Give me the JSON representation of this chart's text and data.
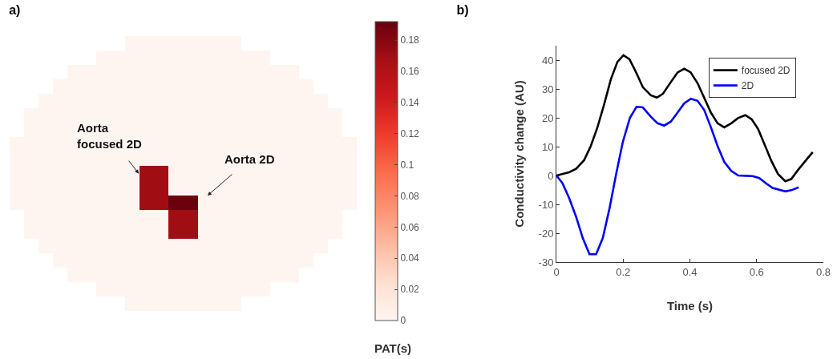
{
  "chart_data": [
    {
      "type": "heatmap",
      "title": "a)",
      "clabel": "PAT(s)",
      "annotations": [
        "Aorta focused 2D",
        "Aorta 2D"
      ],
      "categories": [
        null,
        null,
        null,
        null,
        null,
        null,
        null,
        null,
        null,
        null,
        null,
        null,
        null,
        null,
        null,
        null,
        null,
        null,
        null,
        null,
        null,
        null,
        null,
        null
      ],
      "y_categories": [
        null,
        null,
        null,
        null,
        null,
        null,
        null,
        null,
        null,
        null,
        null,
        null,
        null,
        null,
        null,
        null,
        null,
        null,
        null
      ],
      "clim": [
        0,
        0.192
      ],
      "cticks": [
        0,
        0.02,
        0.04,
        0.06,
        0.08,
        0.1,
        0.12,
        0.14,
        0.16,
        0.18
      ],
      "cells": [
        [
          null,
          null,
          null,
          null,
          null,
          null,
          null,
          null,
          0,
          0,
          0,
          0,
          0,
          0,
          0,
          0,
          null,
          null,
          null,
          null,
          null,
          null,
          null,
          null
        ],
        [
          null,
          null,
          null,
          null,
          null,
          null,
          0,
          0,
          0,
          0,
          0,
          0,
          0,
          0,
          0,
          0,
          0,
          0,
          null,
          null,
          null,
          null,
          null,
          null
        ],
        [
          null,
          null,
          null,
          null,
          0,
          0,
          0,
          0,
          0,
          0,
          0,
          0,
          0,
          0,
          0,
          0,
          0,
          0,
          0,
          0,
          null,
          null,
          null,
          null
        ],
        [
          null,
          null,
          null,
          0,
          0,
          0,
          0,
          0,
          0,
          0,
          0,
          0,
          0,
          0,
          0,
          0,
          0,
          0,
          0,
          0,
          0,
          null,
          null,
          null
        ],
        [
          null,
          null,
          0,
          0,
          0,
          0,
          0,
          0,
          0,
          0,
          0,
          0,
          0,
          0,
          0,
          0,
          0,
          0,
          0,
          0,
          0,
          0,
          null,
          null
        ],
        [
          null,
          0,
          0,
          0,
          0,
          0,
          0,
          0,
          0,
          0,
          0,
          0,
          0,
          0,
          0,
          0,
          0,
          0,
          0,
          0,
          0,
          0,
          0,
          null
        ],
        [
          null,
          0,
          0,
          0,
          0,
          0,
          0,
          0,
          0,
          0,
          0,
          0,
          0,
          0,
          0,
          0,
          0,
          0,
          0,
          0,
          0,
          0,
          0,
          null
        ],
        [
          0,
          0,
          0,
          0,
          0,
          0,
          0,
          0,
          0,
          0,
          0,
          0,
          0,
          0,
          0,
          0,
          0,
          0,
          0,
          0,
          0,
          0,
          0,
          0
        ],
        [
          0,
          0,
          0,
          0,
          0,
          0,
          0,
          0,
          0,
          0,
          0,
          0,
          0,
          0,
          0,
          0,
          0,
          0,
          0,
          0,
          0,
          0,
          0,
          0
        ],
        [
          0,
          0,
          0,
          0,
          0,
          0,
          0,
          0,
          0,
          0.17,
          0.17,
          0,
          0,
          0,
          0,
          0,
          0,
          0,
          0,
          0,
          0,
          0,
          0,
          0
        ],
        [
          0,
          0,
          0,
          0,
          0,
          0,
          0,
          0,
          0,
          0.17,
          0.17,
          0,
          0,
          0,
          0,
          0,
          0,
          0,
          0,
          0,
          0,
          0,
          0,
          0
        ],
        [
          0,
          0,
          0,
          0,
          0,
          0,
          0,
          0,
          0,
          0.17,
          0.17,
          0.19,
          0.19,
          0,
          0,
          0,
          0,
          0,
          0,
          0,
          0,
          0,
          0,
          0
        ],
        [
          null,
          0,
          0,
          0,
          0,
          0,
          0,
          0,
          0,
          0,
          0,
          0.17,
          0.17,
          0,
          0,
          0,
          0,
          0,
          0,
          0,
          0,
          0,
          0,
          null
        ],
        [
          null,
          0,
          0,
          0,
          0,
          0,
          0,
          0,
          0,
          0,
          0,
          0.17,
          0.17,
          0,
          0,
          0,
          0,
          0,
          0,
          0,
          0,
          0,
          0,
          null
        ],
        [
          null,
          null,
          0,
          0,
          0,
          0,
          0,
          0,
          0,
          0,
          0,
          0,
          0,
          0,
          0,
          0,
          0,
          0,
          0,
          0,
          0,
          0,
          null,
          null
        ],
        [
          null,
          null,
          null,
          0,
          0,
          0,
          0,
          0,
          0,
          0,
          0,
          0,
          0,
          0,
          0,
          0,
          0,
          0,
          0,
          0,
          0,
          null,
          null,
          null
        ],
        [
          null,
          null,
          null,
          null,
          0,
          0,
          0,
          0,
          0,
          0,
          0,
          0,
          0,
          0,
          0,
          0,
          0,
          0,
          0,
          0,
          null,
          null,
          null,
          null
        ],
        [
          null,
          null,
          null,
          null,
          null,
          null,
          0,
          0,
          0,
          0,
          0,
          0,
          0,
          0,
          0,
          0,
          0,
          0,
          null,
          null,
          null,
          null,
          null,
          null
        ],
        [
          null,
          null,
          null,
          null,
          null,
          null,
          null,
          null,
          0,
          0,
          0,
          0,
          0,
          0,
          0,
          0,
          null,
          null,
          null,
          null,
          null,
          null,
          null,
          null
        ]
      ]
    },
    {
      "type": "line",
      "title": "b)",
      "xlabel": "Time (s)",
      "ylabel": "Conductivity change (AU)",
      "xlim": [
        0,
        0.8
      ],
      "xticks": [
        0,
        0.2,
        0.4,
        0.6,
        0.8
      ],
      "ylim": [
        -30,
        45
      ],
      "yticks": [
        -30,
        -20,
        -10,
        0,
        10,
        20,
        30,
        40
      ],
      "grid": false,
      "legend": "top right",
      "marker": "none",
      "line_style": "solid",
      "series": [
        {
          "name": "focused 2D",
          "color": "#000000",
          "x": [
            0,
            0.038,
            0.059,
            0.083,
            0.103,
            0.123,
            0.143,
            0.163,
            0.183,
            0.201,
            0.219,
            0.239,
            0.259,
            0.283,
            0.301,
            0.319,
            0.343,
            0.363,
            0.383,
            0.402,
            0.423,
            0.443,
            0.463,
            0.483,
            0.503,
            0.524,
            0.544,
            0.566,
            0.585,
            0.604,
            0.624,
            0.644,
            0.664,
            0.686,
            0.704,
            0.724,
            0.748,
            0.768
          ],
          "values": [
            0,
            1.1,
            2.3,
            5.3,
            10.2,
            16.7,
            24.6,
            33.3,
            39.4,
            41.7,
            40.3,
            35.7,
            30.6,
            27.8,
            27,
            28.3,
            32.4,
            35.7,
            37,
            35.8,
            32,
            26.9,
            21.8,
            18.1,
            16.7,
            18.1,
            19.9,
            20.9,
            19.5,
            16.2,
            10.7,
            5.1,
            0.5,
            -2,
            -1.2,
            1.9,
            5.3,
            8.1
          ]
        },
        {
          "name": "2D",
          "color": "#0000ff",
          "x": [
            0,
            0.018,
            0.038,
            0.059,
            0.079,
            0.099,
            0.119,
            0.139,
            0.159,
            0.179,
            0.199,
            0.22,
            0.24,
            0.259,
            0.283,
            0.303,
            0.323,
            0.343,
            0.363,
            0.383,
            0.403,
            0.423,
            0.443,
            0.463,
            0.483,
            0.503,
            0.524,
            0.545,
            0.568,
            0.588,
            0.608,
            0.628,
            0.648,
            0.686,
            0.704,
            0.726
          ],
          "values": [
            0,
            -2.6,
            -7.8,
            -14.3,
            -21.7,
            -27.3,
            -27.3,
            -21.7,
            -11.5,
            0.5,
            11.6,
            19.9,
            23.8,
            23.6,
            20.4,
            18.1,
            17.3,
            18.7,
            21.8,
            25,
            26.6,
            25.9,
            22.7,
            16.7,
            10.2,
            4.7,
            1.6,
            0,
            -0.1,
            -0.2,
            -0.9,
            -2.7,
            -4.3,
            -5.5,
            -5.1,
            -4.1
          ]
        }
      ]
    }
  ]
}
